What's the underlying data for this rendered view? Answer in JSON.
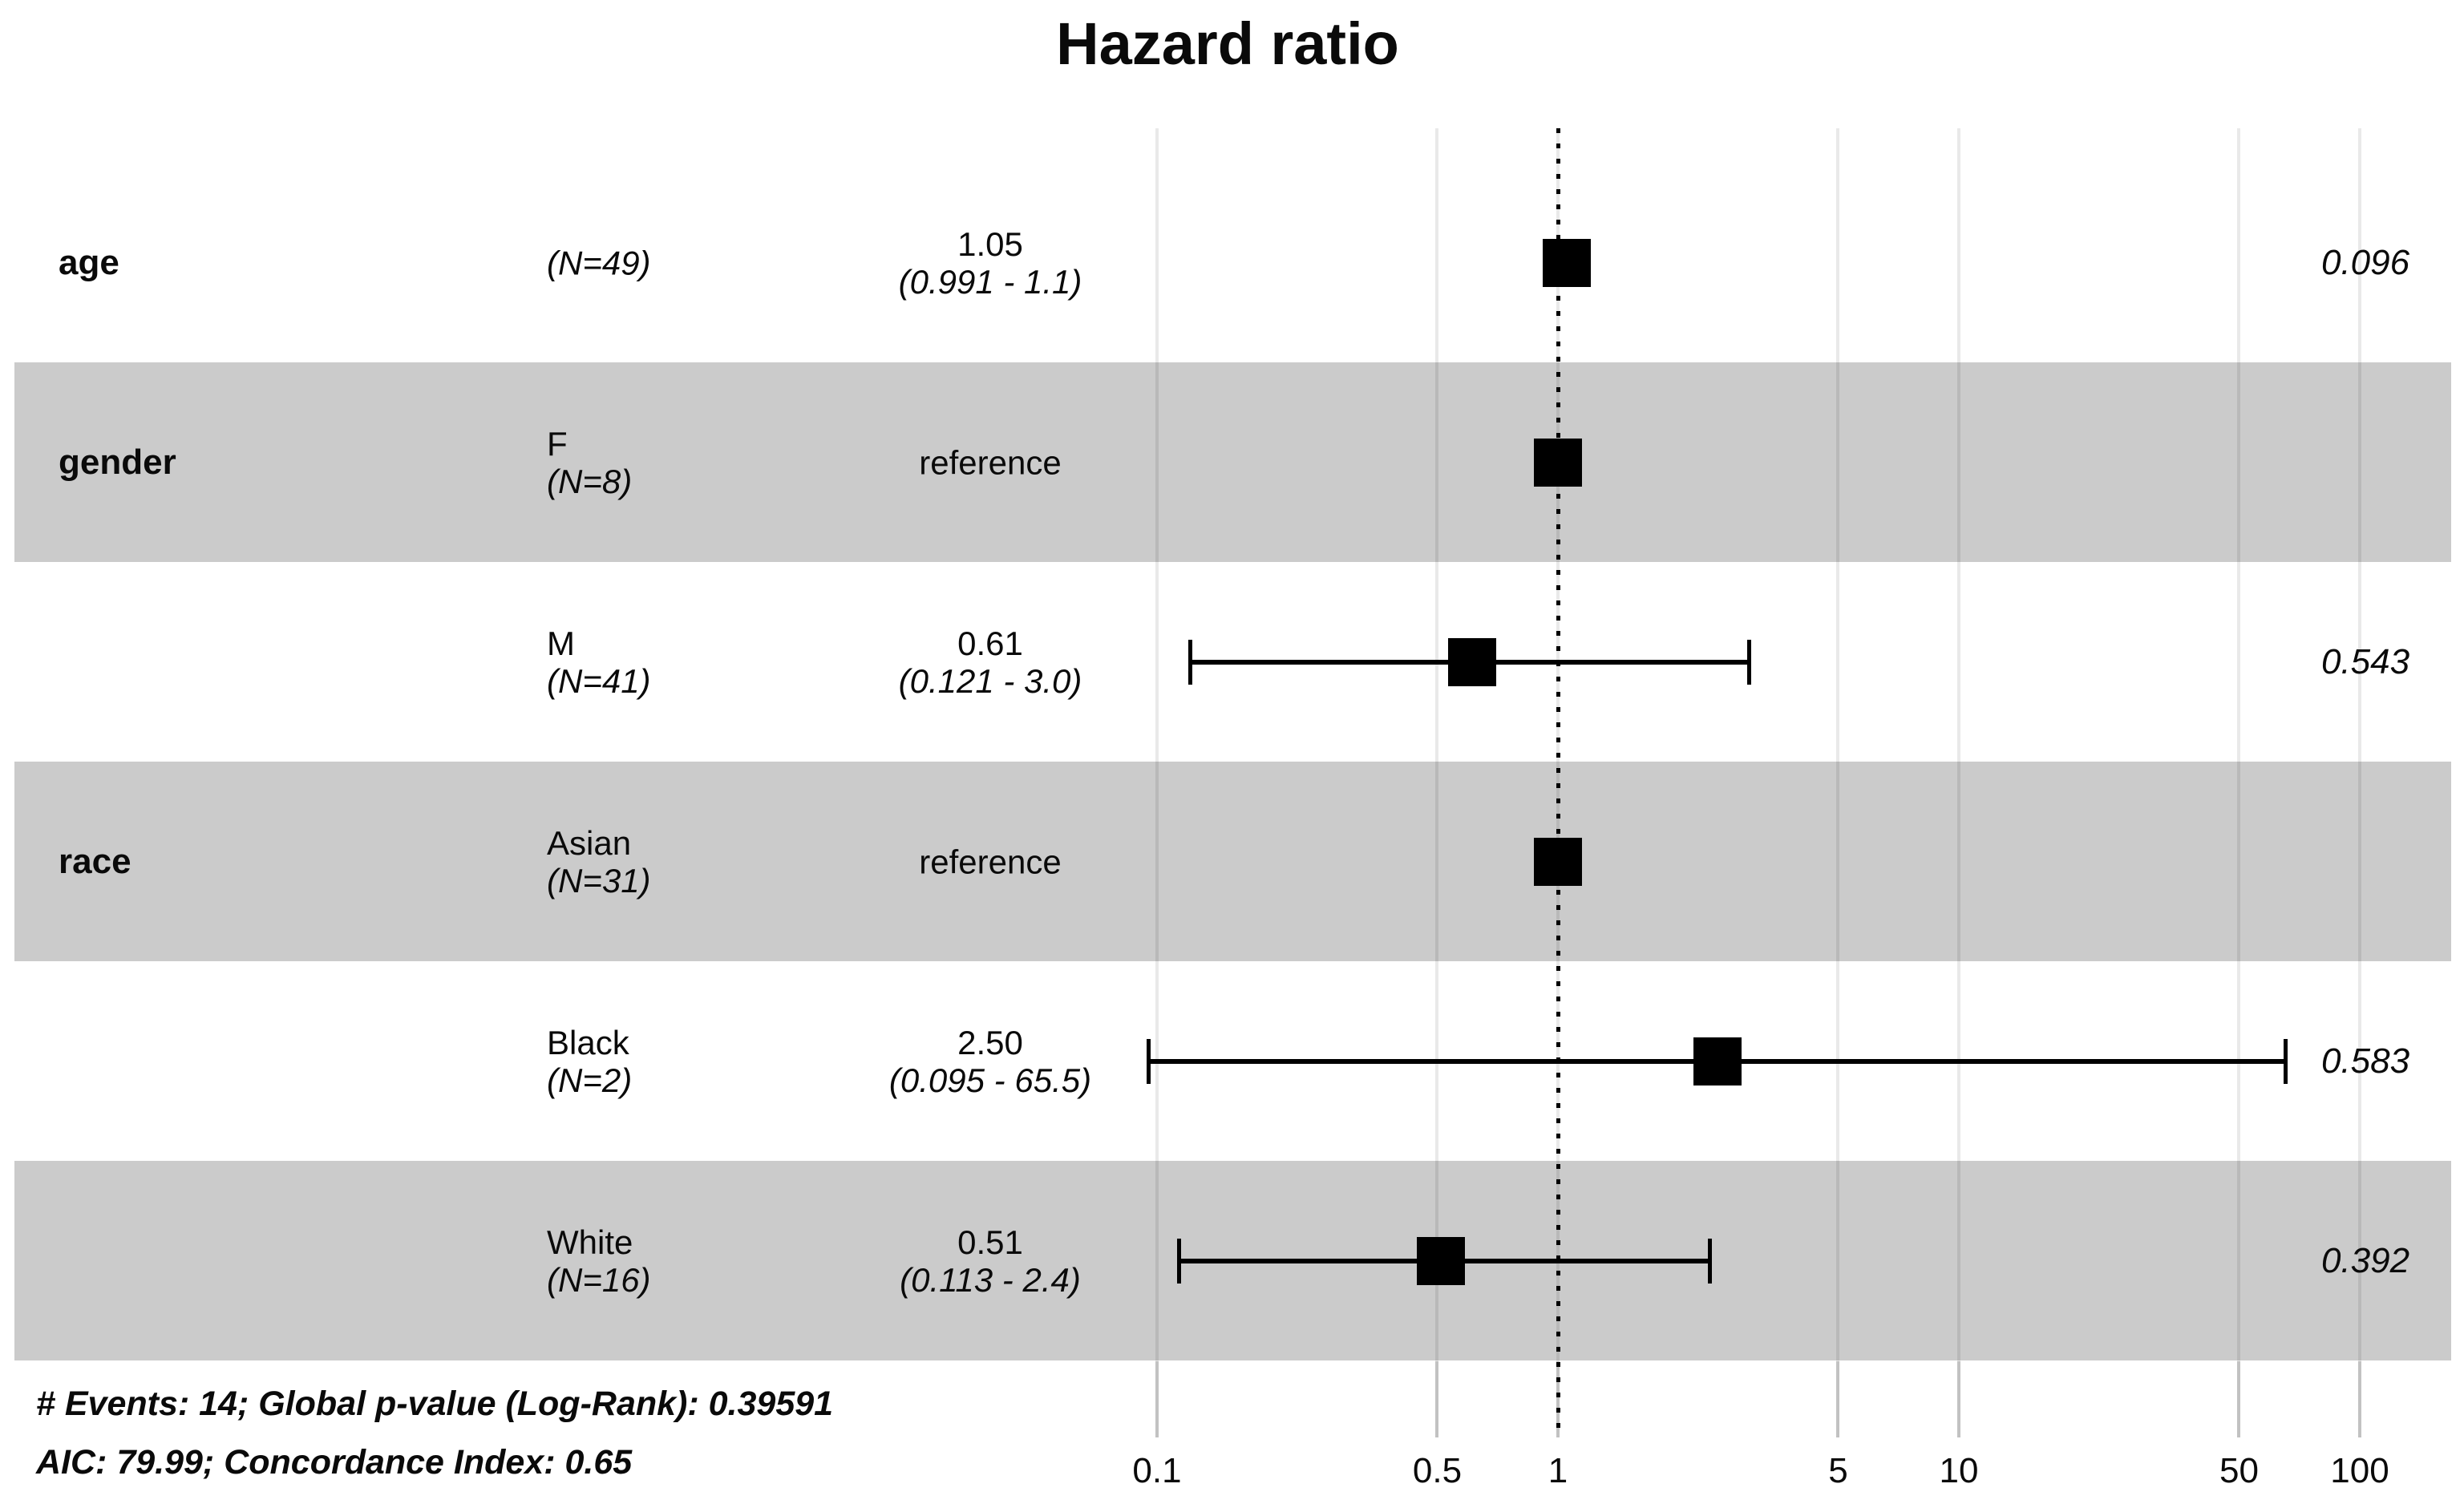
{
  "chart_data": {
    "type": "forest",
    "title": "Hazard ratio",
    "x_scale": "log10",
    "x_axis_ticks": [
      {
        "value": 0.1,
        "label": "0.1"
      },
      {
        "value": 0.5,
        "label": "0.5"
      },
      {
        "value": 1,
        "label": "1"
      },
      {
        "value": 5,
        "label": "5"
      },
      {
        "value": 10,
        "label": "10"
      },
      {
        "value": 50,
        "label": "50"
      },
      {
        "value": 100,
        "label": "100"
      }
    ],
    "reference_line": 1,
    "rows": [
      {
        "variable": "age",
        "level": "",
        "n_label": "(N=49)",
        "estimate_label": "1.05",
        "ci_label": "(0.991 - 1.1)",
        "hr": 1.05,
        "ci_low": 0.991,
        "ci_high": 1.1,
        "p_value": "0.096",
        "reference": false,
        "shaded": false
      },
      {
        "variable": "gender",
        "level": "F",
        "n_label": "(N=8)",
        "estimate_label": "reference",
        "ci_label": "",
        "hr": 1,
        "ci_low": null,
        "ci_high": null,
        "p_value": "",
        "reference": true,
        "shaded": true
      },
      {
        "variable": "",
        "level": "M",
        "n_label": "(N=41)",
        "estimate_label": "0.61",
        "ci_label": "(0.121 - 3.0)",
        "hr": 0.61,
        "ci_low": 0.121,
        "ci_high": 3.0,
        "p_value": "0.543",
        "reference": false,
        "shaded": false
      },
      {
        "variable": "race",
        "level": "Asian",
        "n_label": "(N=31)",
        "estimate_label": "reference",
        "ci_label": "",
        "hr": 1,
        "ci_low": null,
        "ci_high": null,
        "p_value": "",
        "reference": true,
        "shaded": true
      },
      {
        "variable": "",
        "level": "Black",
        "n_label": "(N=2)",
        "estimate_label": "2.50",
        "ci_label": "(0.095 - 65.5)",
        "hr": 2.5,
        "ci_low": 0.095,
        "ci_high": 65.5,
        "p_value": "0.583",
        "reference": false,
        "shaded": false
      },
      {
        "variable": "",
        "level": "White",
        "n_label": "(N=16)",
        "estimate_label": "0.51",
        "ci_label": "(0.113 - 2.4)",
        "hr": 0.51,
        "ci_low": 0.113,
        "ci_high": 2.4,
        "p_value": "0.392",
        "reference": false,
        "shaded": true
      }
    ],
    "footnotes": [
      "# Events: 14; Global p-value (Log-Rank): 0.39591",
      "AIC: 79.99; Concordance Index: 0.65"
    ]
  },
  "colors": {
    "band": "#cbcbcb",
    "marker": "#000000",
    "errorbar": "#000000",
    "text": "#0a0a0a",
    "gridline": "rgba(0,0,0,0.085)",
    "axis_tick": "#c2c2c2",
    "reference_dots": "#000000"
  }
}
